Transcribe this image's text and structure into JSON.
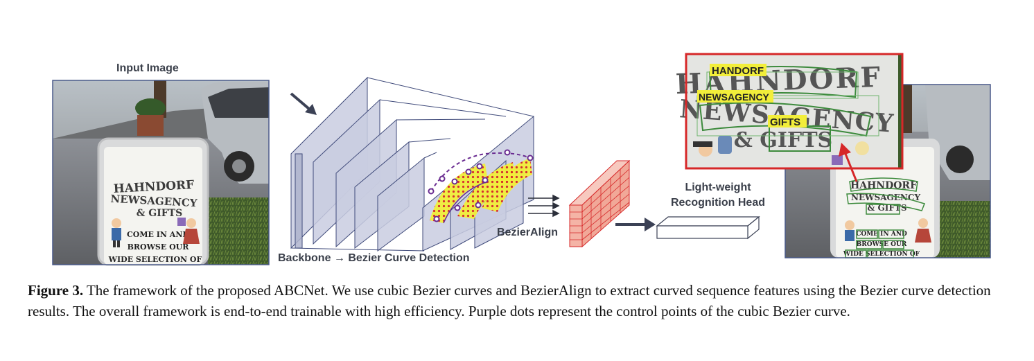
{
  "labels": {
    "input_image": "Input Image",
    "backbone": "Backbone → Bezier Curve Detection",
    "bezier_align": "BezierAlign",
    "recognition_head_line1": "Light-weight",
    "recognition_head_line2": "Recognition Head"
  },
  "sign": {
    "line1": "HAHNDORF",
    "line2": "NEWSAGENCY",
    "line3": "& GIFTS",
    "line4": "COME IN AND",
    "line5": "BROWSE OUR",
    "line6": "WIDE SELECTION OF"
  },
  "detections": {
    "word1": "HANDORF",
    "word2": "NEWSAGENCY",
    "word3": "GIFTS"
  },
  "caption": {
    "lead": "Figure 3.",
    "body": "The framework of the proposed ABCNet. We use cubic Bezier curves and BezierAlign to extract curved sequence features using the Bezier curve detection results. The overall framework is end-to-end trainable with high efficiency. Purple dots represent the control points of the cubic Bezier curve."
  },
  "colors": {
    "plane_fill": "#c9cde0",
    "plane_stroke": "#3f4a7a",
    "feature_red": "#e07a6a",
    "highlight_red": "#d62728",
    "bezier_purple": "#6a2c91",
    "detect_green": "#3c8a3c",
    "highlight_yellow": "#f2ee3a"
  }
}
